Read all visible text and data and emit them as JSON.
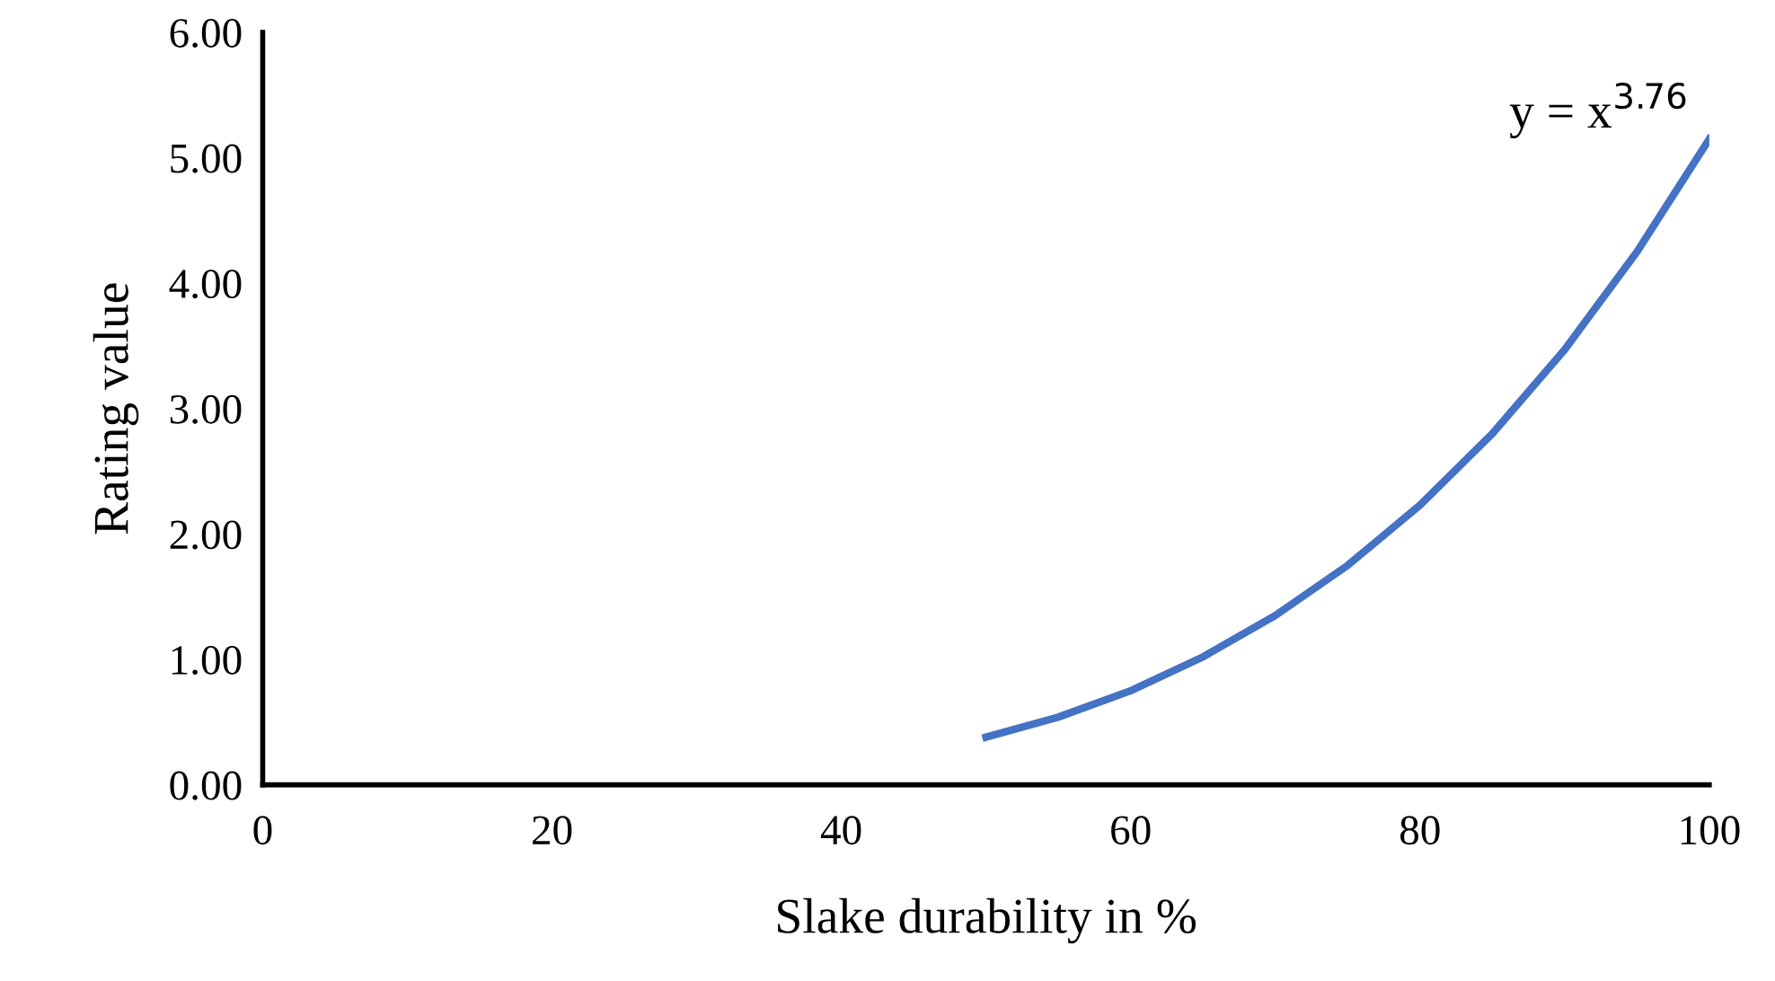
{
  "chart_data": {
    "type": "line",
    "xlabel": "Slake durability in %",
    "ylabel": "Rating value",
    "x": [
      50,
      55,
      60,
      65,
      70,
      75,
      80,
      85,
      90,
      95,
      100
    ],
    "series": [
      {
        "color": "#4472c4",
        "values": [
          0.38,
          0.54,
          0.75,
          1.02,
          1.35,
          1.75,
          2.23,
          2.8,
          3.47,
          4.25,
          5.15
        ]
      }
    ],
    "annotations": [
      "y = x$^{3.76}$"
    ],
    "xlim": [
      0,
      100
    ],
    "xticks": [
      0,
      20,
      40,
      60,
      80,
      100
    ],
    "ylim": [
      0,
      6
    ],
    "yticks": [
      {
        "value": 0,
        "label": "0.00"
      },
      {
        "value": 1,
        "label": "1.00"
      },
      {
        "value": 2,
        "label": "2.00"
      },
      {
        "value": 3,
        "label": "3.00"
      },
      {
        "value": 4,
        "label": "4.00"
      },
      {
        "value": 5,
        "label": "5.00"
      },
      {
        "value": 6,
        "label": "6.00"
      }
    ],
    "grid": false,
    "legend": false,
    "marker": "none",
    "line_style": "solid"
  }
}
